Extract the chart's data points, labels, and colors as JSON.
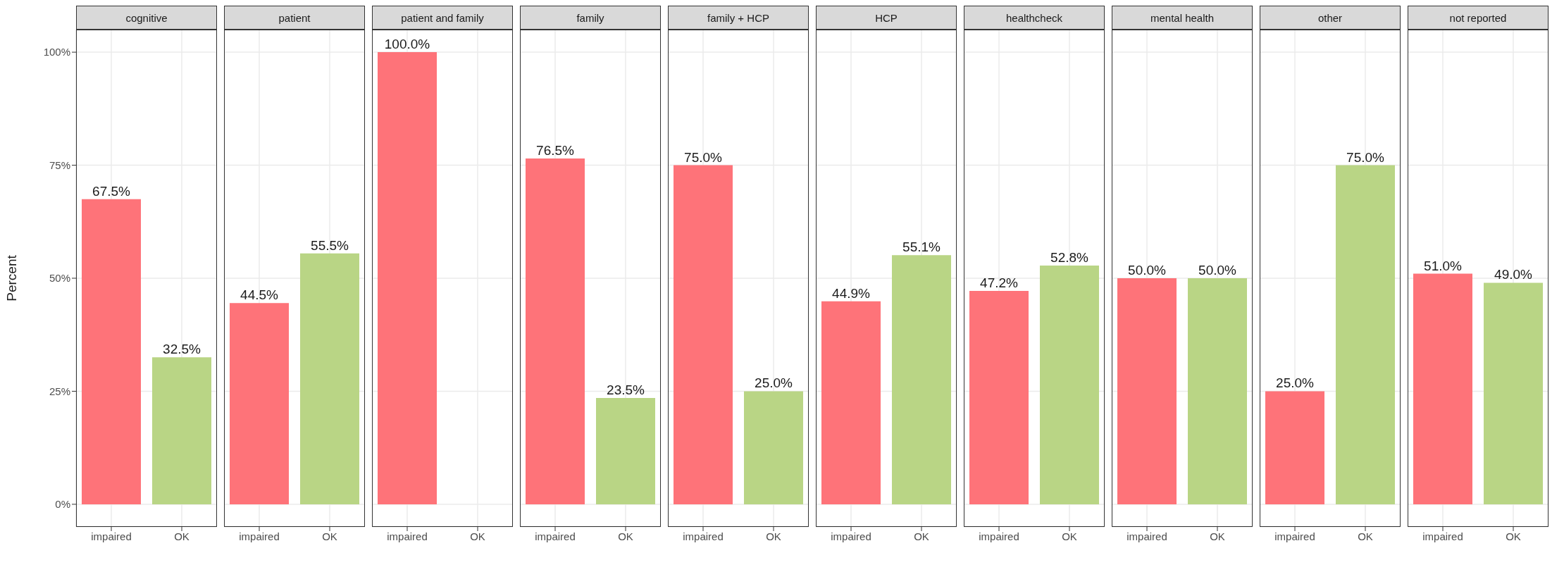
{
  "chart_data": [
    {
      "type": "bar",
      "title": "cognitive",
      "ylabel": "Percent",
      "categories": [
        "impaired",
        "OK"
      ],
      "values": [
        67.5,
        32.5
      ],
      "colors": [
        "#fe7379",
        "#b9d585"
      ],
      "value_labels": [
        "67.5%",
        "32.5%"
      ],
      "ylim": [
        -5,
        105
      ],
      "yticks": [
        {
          "value": 0,
          "label": "0%"
        },
        {
          "value": 25,
          "label": "25%"
        },
        {
          "value": 50,
          "label": "50%"
        },
        {
          "value": 75,
          "label": "75%"
        },
        {
          "value": 100,
          "label": "100%"
        }
      ],
      "grid": true
    },
    {
      "type": "bar",
      "title": "patient",
      "categories": [
        "impaired",
        "OK"
      ],
      "values": [
        44.5,
        55.5
      ],
      "colors": [
        "#fe7379",
        "#b9d585"
      ],
      "value_labels": [
        "44.5%",
        "55.5%"
      ],
      "ylim": [
        -5,
        105
      ],
      "yticks": [
        0,
        25,
        50,
        75,
        100
      ],
      "grid": true,
      "tick_labels": "x"
    },
    {
      "type": "bar",
      "title": "patient and family",
      "categories": [
        "impaired",
        "OK"
      ],
      "values": [
        100,
        null
      ],
      "colors": [
        "#fe7379",
        "#b9d585"
      ],
      "value_labels": [
        "100.0%",
        null
      ],
      "ylim": [
        -5,
        105
      ],
      "yticks": [
        0,
        25,
        50,
        75,
        100
      ],
      "grid": true,
      "tick_labels": "x"
    },
    {
      "type": "bar",
      "title": "family",
      "categories": [
        "impaired",
        "OK"
      ],
      "values": [
        76.5,
        23.5
      ],
      "colors": [
        "#fe7379",
        "#b9d585"
      ],
      "value_labels": [
        "76.5%",
        "23.5%"
      ],
      "ylim": [
        -5,
        105
      ],
      "yticks": [
        0,
        25,
        50,
        75,
        100
      ],
      "grid": true,
      "tick_labels": "x"
    },
    {
      "type": "bar",
      "title": "family + HCP",
      "categories": [
        "impaired",
        "OK"
      ],
      "values": [
        75,
        25
      ],
      "colors": [
        "#fe7379",
        "#b9d585"
      ],
      "value_labels": [
        "75.0%",
        "25.0%"
      ],
      "ylim": [
        -5,
        105
      ],
      "yticks": [
        0,
        25,
        50,
        75,
        100
      ],
      "grid": true,
      "tick_labels": "x"
    },
    {
      "type": "bar",
      "title": "HCP",
      "categories": [
        "impaired",
        "OK"
      ],
      "values": [
        44.9,
        55.1
      ],
      "colors": [
        "#fe7379",
        "#b9d585"
      ],
      "value_labels": [
        "44.9%",
        "55.1%"
      ],
      "ylim": [
        -5,
        105
      ],
      "yticks": [
        0,
        25,
        50,
        75,
        100
      ],
      "grid": true,
      "tick_labels": "x"
    },
    {
      "type": "bar",
      "title": "healthcheck",
      "categories": [
        "impaired",
        "OK"
      ],
      "values": [
        47.2,
        52.8
      ],
      "colors": [
        "#fe7379",
        "#b9d585"
      ],
      "value_labels": [
        "47.2%",
        "52.8%"
      ],
      "ylim": [
        -5,
        105
      ],
      "yticks": [
        0,
        25,
        50,
        75,
        100
      ],
      "grid": true,
      "tick_labels": "x"
    },
    {
      "type": "bar",
      "title": "mental health",
      "categories": [
        "impaired",
        "OK"
      ],
      "values": [
        50,
        50
      ],
      "colors": [
        "#fe7379",
        "#b9d585"
      ],
      "value_labels": [
        "50.0%",
        "50.0%"
      ],
      "ylim": [
        -5,
        105
      ],
      "yticks": [
        0,
        25,
        50,
        75,
        100
      ],
      "grid": true,
      "tick_labels": "x"
    },
    {
      "type": "bar",
      "title": "other",
      "categories": [
        "impaired",
        "OK"
      ],
      "values": [
        25,
        75
      ],
      "colors": [
        "#fe7379",
        "#b9d585"
      ],
      "value_labels": [
        "25.0%",
        "75.0%"
      ],
      "ylim": [
        -5,
        105
      ],
      "yticks": [
        0,
        25,
        50,
        75,
        100
      ],
      "grid": true,
      "tick_labels": "x"
    },
    {
      "type": "bar",
      "title": "not reported",
      "categories": [
        "impaired",
        "OK"
      ],
      "values": [
        51,
        49
      ],
      "colors": [
        "#fe7379",
        "#b9d585"
      ],
      "value_labels": [
        "51.0%",
        "49.0%"
      ],
      "ylim": [
        -5,
        105
      ],
      "yticks": [
        0,
        25,
        50,
        75,
        100
      ],
      "grid": true,
      "tick_labels": "x"
    }
  ]
}
